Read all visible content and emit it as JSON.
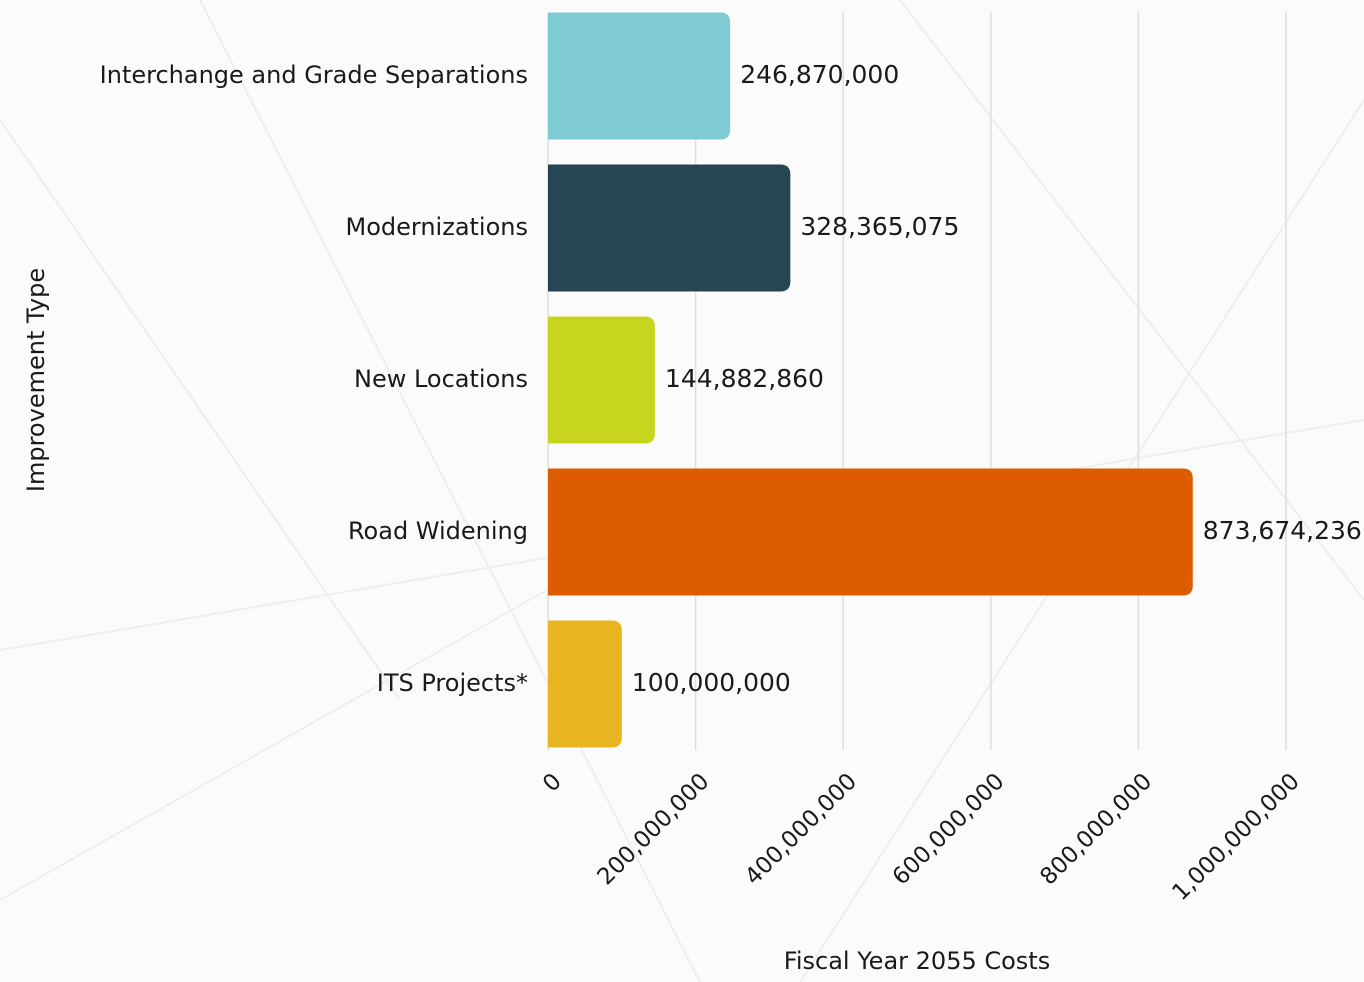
{
  "chart_data": {
    "type": "bar",
    "orientation": "horizontal",
    "categories": [
      "Interchange and Grade Separations",
      "Modernizations",
      "New Locations",
      "Road Widening",
      "ITS Projects*"
    ],
    "values": [
      246870000,
      328365075,
      144882860,
      873674236,
      100000000
    ],
    "value_labels": [
      "246,870,000",
      "328,365,075",
      "144,882,860",
      "873,674,236",
      "100,000,000"
    ],
    "colors": [
      "#7ecbd4",
      "#264653",
      "#c8d51e",
      "#dd5c00",
      "#e8b420"
    ],
    "xlabel": "Fiscal Year 2055 Costs",
    "ylabel": "Improvement Type",
    "xlim": [
      0,
      1000000000
    ],
    "xticks": [
      0,
      {
        "value": 200000000,
        "label": "200,000,000"
      },
      {
        "value": 400000000,
        "label": "400,000,000"
      },
      {
        "value": 600000000,
        "label": "600,000,000"
      },
      {
        "value": 800000000,
        "label": "800,000,000"
      },
      {
        "value": 1000000000,
        "label": "1,000,000,000"
      }
    ],
    "grid": true
  }
}
